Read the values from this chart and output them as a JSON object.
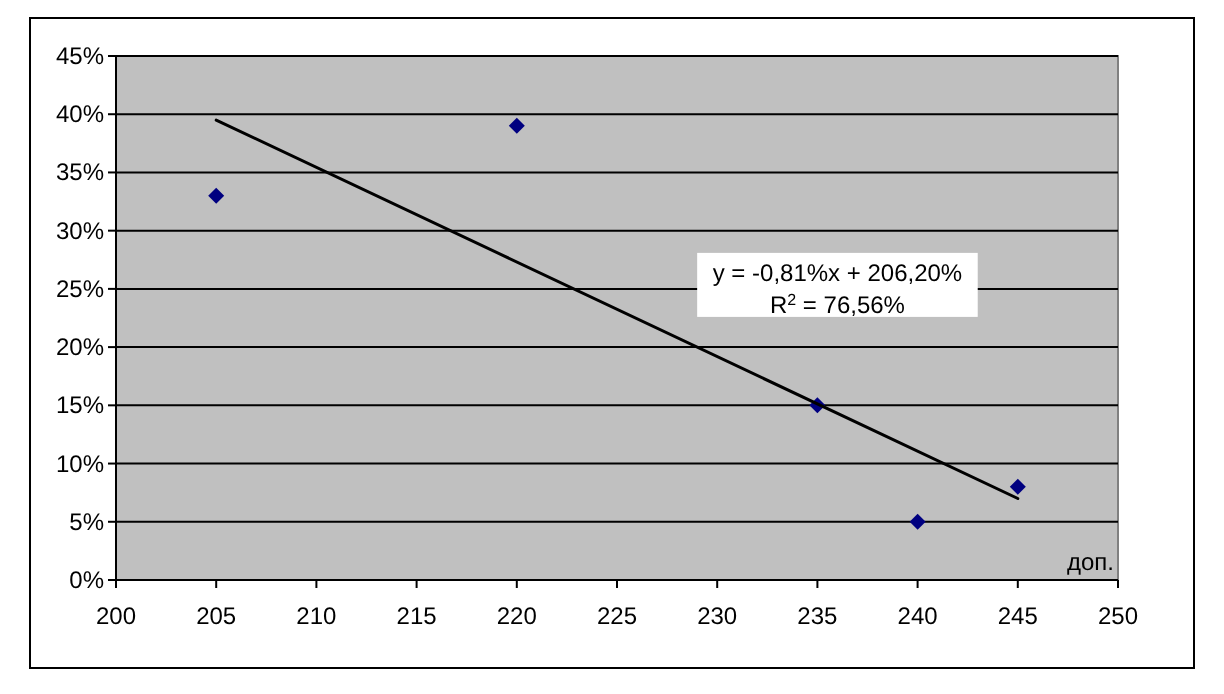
{
  "chart_data": {
    "type": "scatter",
    "xlabel": "доп.",
    "marker": "diamond",
    "grid": "y",
    "xlim": [
      200,
      250
    ],
    "xticks": [
      200,
      205,
      210,
      215,
      220,
      225,
      230,
      235,
      240,
      245,
      250
    ],
    "ylim": [
      0,
      45
    ],
    "yticks": [
      {
        "value": 0,
        "label": "0%"
      },
      {
        "value": 5,
        "label": "5%"
      },
      {
        "value": 10,
        "label": "10%"
      },
      {
        "value": 15,
        "label": "15%"
      },
      {
        "value": 20,
        "label": "20%"
      },
      {
        "value": 25,
        "label": "25%"
      },
      {
        "value": 30,
        "label": "30%"
      },
      {
        "value": 35,
        "label": "35%"
      },
      {
        "value": 40,
        "label": "40%"
      },
      {
        "value": 45,
        "label": "45%"
      }
    ],
    "series": [
      {
        "color": "#000080",
        "x": [
          205,
          220,
          235,
          240,
          245
        ],
        "values": [
          33,
          39,
          15,
          5,
          8
        ]
      },
      {
        "type": "line",
        "color": "#000000",
        "marker": "none",
        "x": [
          205,
          245
        ],
        "values": [
          39.5,
          7
        ]
      }
    ],
    "annotations": [
      "y = -0,81%x + 206,20%",
      "R$^{2}$ = 76,56%"
    ]
  }
}
